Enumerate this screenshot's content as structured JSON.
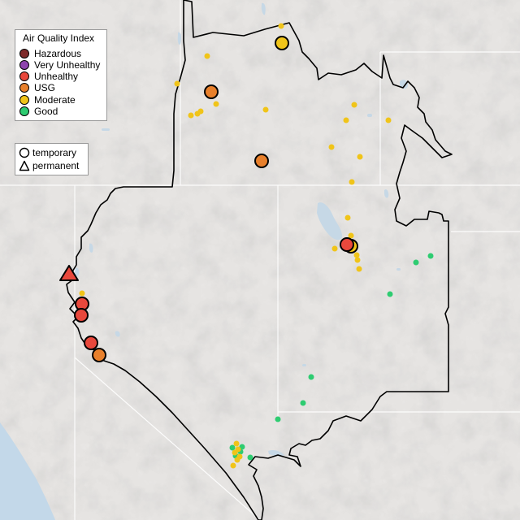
{
  "legend": {
    "title": "Air Quality Index",
    "categories": [
      {
        "label": "Hazardous",
        "color": "#7e2a2a"
      },
      {
        "label": "Very Unhealthy",
        "color": "#8e44ad"
      },
      {
        "label": "Unhealthy",
        "color": "#e8483c"
      },
      {
        "label": "USG",
        "color": "#e8802c"
      },
      {
        "label": "Moderate",
        "color": "#f0c419"
      },
      {
        "label": "Good",
        "color": "#2ecc71"
      }
    ]
  },
  "monitor_types": {
    "temporary_label": "temporary",
    "temporary_icon": "open-circle-icon",
    "permanent_label": "permanent",
    "permanent_icon": "open-triangle-icon"
  },
  "colors": {
    "water": "#c6d8e6",
    "land": "#e7e5e3",
    "ocean": "#c3d8e9",
    "boundary": "#000000",
    "state_lines": "#ffffff"
  }
}
